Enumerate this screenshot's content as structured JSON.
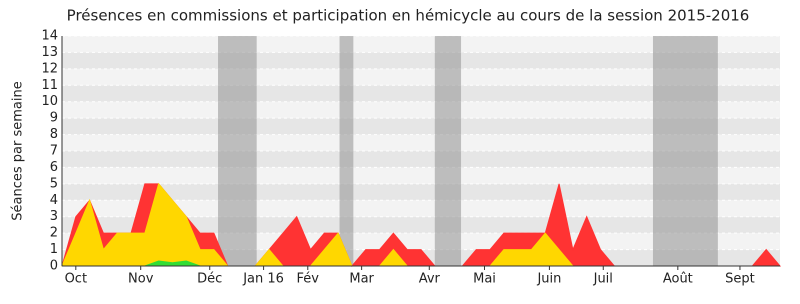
{
  "chart_data": {
    "type": "area",
    "title": "Présences en commissions et participation en hémicycle au cours de la session 2015-2016",
    "y_label": "Séances par semaine",
    "x": [
      0,
      1,
      2,
      3,
      4,
      5,
      6,
      7,
      8,
      9,
      10,
      11,
      12,
      13,
      14,
      15,
      16,
      17,
      18,
      19,
      20,
      21,
      22,
      23,
      24,
      25,
      26,
      27,
      28,
      29,
      30,
      31,
      32,
      33,
      34,
      35,
      36,
      37,
      38,
      39,
      40,
      41,
      42,
      43,
      44,
      45,
      46,
      47,
      48,
      49,
      50,
      51,
      52
    ],
    "xlim": [
      0,
      52
    ],
    "xticks": [
      {
        "value": 1,
        "label": "Oct"
      },
      {
        "value": 5.7,
        "label": "Nov"
      },
      {
        "value": 10.7,
        "label": "Déc"
      },
      {
        "value": 14.6,
        "label": "Jan 16"
      },
      {
        "value": 17.8,
        "label": "Fév"
      },
      {
        "value": 21.7,
        "label": "Mar"
      },
      {
        "value": 26.6,
        "label": "Avr"
      },
      {
        "value": 30.6,
        "label": "Mai"
      },
      {
        "value": 35.3,
        "label": "Juin"
      },
      {
        "value": 39.2,
        "label": "Juil"
      },
      {
        "value": 44.6,
        "label": "Août"
      },
      {
        "value": 49.1,
        "label": "Sept"
      }
    ],
    "ylim": [
      0,
      14
    ],
    "yticks": [
      0,
      1,
      2,
      3,
      4,
      5,
      6,
      7,
      8,
      9,
      10,
      11,
      12,
      13,
      14
    ],
    "shaded": [
      [
        11.3,
        14.1
      ],
      [
        20.1,
        21.1
      ],
      [
        27,
        28.9
      ],
      [
        42.8,
        47.5
      ]
    ],
    "series": [
      {
        "color": "#ff3333",
        "values": [
          0,
          3,
          4,
          2,
          2,
          2,
          5,
          5,
          4,
          3,
          2,
          2,
          0,
          0,
          0,
          1,
          2,
          3,
          1,
          2,
          2,
          0,
          1,
          1,
          2,
          1,
          1,
          0,
          0,
          0,
          1,
          1,
          2,
          2,
          2,
          2,
          5,
          1,
          3,
          1,
          0,
          0,
          0,
          0,
          0,
          0,
          0,
          0,
          0,
          0,
          0,
          1,
          0
        ]
      },
      {
        "color": "#ffd700",
        "values": [
          0,
          2,
          4,
          1,
          2,
          2,
          2,
          5,
          4,
          3,
          1,
          1,
          0,
          0,
          0,
          1,
          0,
          0,
          0,
          1,
          2,
          0,
          0,
          0,
          1,
          0,
          0,
          0,
          0,
          0,
          0,
          0,
          1,
          1,
          1,
          2,
          1,
          0,
          0,
          0,
          0,
          0,
          0,
          0,
          0,
          0,
          0,
          0,
          0,
          0,
          0,
          0,
          0
        ]
      },
      {
        "color": "#33dd33",
        "values": [
          0,
          0,
          0,
          0,
          0,
          0,
          0,
          0.3,
          0.2,
          0.3,
          0,
          0,
          0,
          0,
          0,
          0,
          0,
          0,
          0,
          0,
          0,
          0,
          0,
          0,
          0,
          0,
          0,
          0,
          0,
          0,
          0,
          0,
          0,
          0,
          0,
          0,
          0,
          0,
          0,
          0,
          0,
          0,
          0,
          0,
          0,
          0,
          0,
          0,
          0,
          0,
          0,
          0,
          0
        ]
      }
    ]
  }
}
